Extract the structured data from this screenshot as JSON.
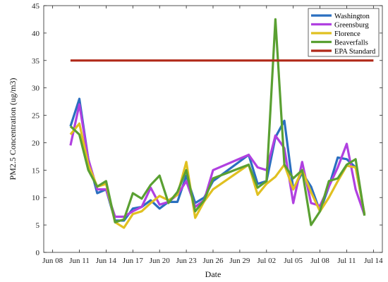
{
  "chart_data": {
    "type": "line",
    "xlabel": "Date",
    "ylabel": "PM2.5 Concentration (ug/m3)",
    "ylim": [
      0,
      45
    ],
    "yticks": [
      0,
      5,
      10,
      15,
      20,
      25,
      30,
      35,
      40,
      45
    ],
    "xlim": [
      "2016-06-07",
      "2016-07-15"
    ],
    "xticks": [
      {
        "date": "2016-06-08",
        "label": "Jun 08"
      },
      {
        "date": "2016-06-11",
        "label": "Jun 11"
      },
      {
        "date": "2016-06-14",
        "label": "Jun 14"
      },
      {
        "date": "2016-06-17",
        "label": "Jun 17"
      },
      {
        "date": "2016-06-20",
        "label": "Jun 20"
      },
      {
        "date": "2016-06-23",
        "label": "Jun 23"
      },
      {
        "date": "2016-06-26",
        "label": "Jun 26"
      },
      {
        "date": "2016-06-29",
        "label": "Jun 29"
      },
      {
        "date": "2016-07-02",
        "label": "Jul 02"
      },
      {
        "date": "2016-07-05",
        "label": "Jul 05"
      },
      {
        "date": "2016-07-08",
        "label": "Jul 08"
      },
      {
        "date": "2016-07-11",
        "label": "Jul 11"
      },
      {
        "date": "2016-07-14",
        "label": "Jul 14"
      }
    ],
    "grid": false,
    "legend_position": "top-right",
    "series": [
      {
        "name": "Washington",
        "color": "#2a6fc0",
        "points": [
          [
            "2016-06-10",
            23.0
          ],
          [
            "2016-06-11",
            28.0
          ],
          [
            "2016-06-12",
            17.0
          ],
          [
            "2016-06-13",
            10.8
          ],
          [
            "2016-06-14",
            11.5
          ],
          [
            "2016-06-15",
            5.8
          ],
          [
            "2016-06-16",
            5.8
          ],
          [
            "2016-06-17",
            8.0
          ],
          [
            "2016-06-18",
            8.3
          ],
          [
            "2016-06-19",
            9.5
          ],
          [
            "2016-06-20",
            8.0
          ],
          [
            "2016-06-21",
            9.2
          ],
          [
            "2016-06-22",
            9.2
          ],
          [
            "2016-06-23",
            14.0
          ],
          [
            "2016-06-24",
            9.0
          ],
          [
            "2016-06-25",
            10.0
          ],
          [
            "2016-06-26",
            13.0
          ],
          [
            "2016-06-30",
            17.8
          ],
          [
            "2016-07-01",
            12.5
          ],
          [
            "2016-07-02",
            13.0
          ],
          [
            "2016-07-03",
            21.0
          ],
          [
            "2016-07-04",
            24.0
          ],
          [
            "2016-07-05",
            11.5
          ],
          [
            "2016-07-06",
            14.5
          ],
          [
            "2016-07-07",
            12.0
          ],
          [
            "2016-07-08",
            7.5
          ],
          [
            "2016-07-09",
            12.0
          ],
          [
            "2016-07-10",
            17.3
          ],
          [
            "2016-07-11",
            17.0
          ],
          [
            "2016-07-12",
            15.5
          ],
          [
            "2016-07-13",
            7.0
          ]
        ]
      },
      {
        "name": "Greensburg",
        "color": "#b040e0",
        "points": [
          [
            "2016-06-10",
            19.5
          ],
          [
            "2016-06-11",
            27.0
          ],
          [
            "2016-06-12",
            17.0
          ],
          [
            "2016-06-13",
            11.5
          ],
          [
            "2016-06-14",
            11.5
          ],
          [
            "2016-06-15",
            6.5
          ],
          [
            "2016-06-16",
            6.5
          ],
          [
            "2016-06-17",
            7.5
          ],
          [
            "2016-06-18",
            8.3
          ],
          [
            "2016-06-19",
            11.8
          ],
          [
            "2016-06-20",
            8.7
          ],
          [
            "2016-06-21",
            9.2
          ],
          [
            "2016-06-22",
            10.5
          ],
          [
            "2016-06-23",
            13.0
          ],
          [
            "2016-06-24",
            8.3
          ],
          [
            "2016-06-25",
            9.5
          ],
          [
            "2016-06-26",
            15.0
          ],
          [
            "2016-06-30",
            17.8
          ],
          [
            "2016-07-01",
            15.5
          ],
          [
            "2016-07-02",
            15.0
          ],
          [
            "2016-07-03",
            21.3
          ],
          [
            "2016-07-04",
            19.0
          ],
          [
            "2016-07-05",
            9.0
          ],
          [
            "2016-07-06",
            16.5
          ],
          [
            "2016-07-07",
            9.0
          ],
          [
            "2016-07-08",
            8.5
          ],
          [
            "2016-07-09",
            12.0
          ],
          [
            "2016-07-10",
            15.5
          ],
          [
            "2016-07-11",
            19.8
          ],
          [
            "2016-07-12",
            11.5
          ],
          [
            "2016-07-13",
            6.8
          ]
        ]
      },
      {
        "name": "Florence",
        "color": "#e0c020",
        "points": [
          [
            "2016-06-10",
            21.5
          ],
          [
            "2016-06-11",
            23.5
          ],
          [
            "2016-06-12",
            16.0
          ],
          [
            "2016-06-13",
            12.0
          ],
          [
            "2016-06-14",
            12.5
          ],
          [
            "2016-06-15",
            5.5
          ],
          [
            "2016-06-16",
            4.5
          ],
          [
            "2016-06-17",
            7.0
          ],
          [
            "2016-06-18",
            7.5
          ],
          [
            "2016-06-19",
            9.0
          ],
          [
            "2016-06-20",
            10.3
          ],
          [
            "2016-06-21",
            9.5
          ],
          [
            "2016-06-22",
            10.5
          ],
          [
            "2016-06-23",
            16.5
          ],
          [
            "2016-06-24",
            6.3
          ],
          [
            "2016-06-25",
            9.3
          ],
          [
            "2016-06-26",
            11.5
          ],
          [
            "2016-06-30",
            16.0
          ],
          [
            "2016-07-01",
            10.5
          ],
          [
            "2016-07-02",
            12.5
          ],
          [
            "2016-07-03",
            13.8
          ],
          [
            "2016-07-04",
            16.0
          ],
          [
            "2016-07-05",
            11.5
          ],
          [
            "2016-07-06",
            15.0
          ],
          [
            "2016-07-07",
            11.0
          ],
          [
            "2016-07-08",
            7.5
          ],
          [
            "2016-07-09",
            10.0
          ],
          [
            "2016-07-10",
            13.0
          ],
          [
            "2016-07-11",
            15.8
          ],
          [
            "2016-07-12",
            15.5
          ],
          [
            "2016-07-13",
            7.0
          ]
        ]
      },
      {
        "name": "Beaverfalls",
        "color": "#5aa032",
        "points": [
          [
            "2016-06-10",
            23.0
          ],
          [
            "2016-06-11",
            21.5
          ],
          [
            "2016-06-12",
            15.0
          ],
          [
            "2016-06-13",
            12.0
          ],
          [
            "2016-06-14",
            13.0
          ],
          [
            "2016-06-15",
            5.5
          ],
          [
            "2016-06-16",
            6.0
          ],
          [
            "2016-06-17",
            10.8
          ],
          [
            "2016-06-18",
            9.8
          ],
          [
            "2016-06-19",
            12.3
          ],
          [
            "2016-06-20",
            14.0
          ],
          [
            "2016-06-21",
            9.0
          ],
          [
            "2016-06-22",
            11.0
          ],
          [
            "2016-06-23",
            15.0
          ],
          [
            "2016-06-24",
            7.5
          ],
          [
            "2016-06-25",
            9.5
          ],
          [
            "2016-06-26",
            13.5
          ],
          [
            "2016-06-30",
            16.0
          ],
          [
            "2016-07-01",
            11.8
          ],
          [
            "2016-07-02",
            13.0
          ],
          [
            "2016-07-03",
            42.5
          ],
          [
            "2016-07-04",
            16.0
          ],
          [
            "2016-07-05",
            13.5
          ],
          [
            "2016-07-06",
            15.0
          ],
          [
            "2016-07-07",
            5.0
          ],
          [
            "2016-07-08",
            7.5
          ],
          [
            "2016-07-09",
            13.0
          ],
          [
            "2016-07-10",
            13.5
          ],
          [
            "2016-07-11",
            16.0
          ],
          [
            "2016-07-12",
            17.0
          ],
          [
            "2016-07-13",
            6.7
          ]
        ]
      },
      {
        "name": "EPA Standard",
        "color": "#b02818",
        "points": [
          [
            "2016-06-10",
            35.0
          ],
          [
            "2016-07-14",
            35.0
          ]
        ]
      }
    ]
  }
}
